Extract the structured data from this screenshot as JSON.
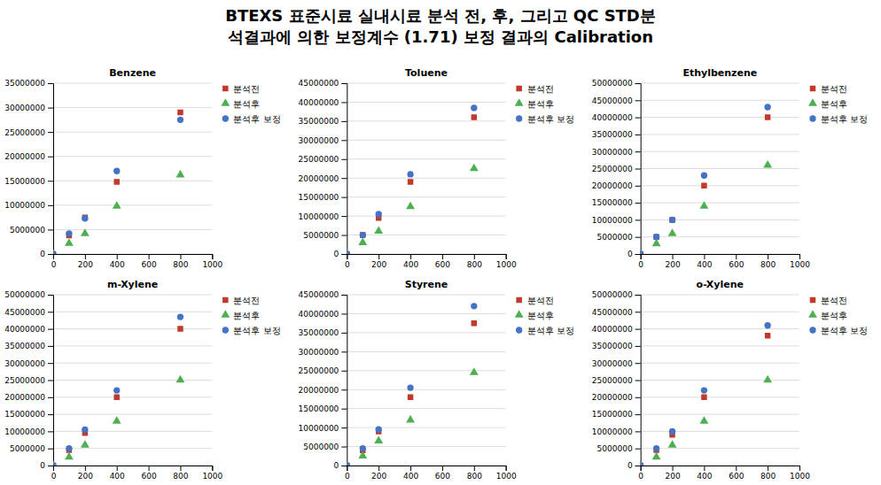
{
  "title": [
    "BTEXS 표준시료 실내시료 분석 전, 후, 그리고 QC STD분",
    "석결과에 의한 보정계수 (1.71) 보정 결과의 Calibration"
  ],
  "chart_data": [
    {
      "type": "scatter",
      "title": "Benzene",
      "grid": true,
      "legend": "right",
      "xlim": [
        0,
        1000
      ],
      "xticks": [
        0,
        200,
        400,
        600,
        800,
        1000
      ],
      "ylim": [
        0,
        35000000
      ],
      "yticks": [
        0,
        5000000,
        10000000,
        15000000,
        20000000,
        25000000,
        30000000,
        35000000
      ],
      "series": [
        {
          "name": "분석전",
          "color": "#C0392B",
          "marker": "square",
          "x": [
            0,
            100,
            200,
            400,
            800
          ],
          "values": [
            0,
            3800000,
            7500000,
            14800000,
            29000000
          ]
        },
        {
          "name": "분석후",
          "color": "#4CAF50",
          "marker": "triangle",
          "x": [
            0,
            100,
            200,
            400,
            800
          ],
          "values": [
            0,
            2200000,
            4200000,
            9800000,
            16200000
          ]
        },
        {
          "name": "분석후 보정",
          "color": "#4472C4",
          "marker": "circle",
          "x": [
            0,
            100,
            200,
            400,
            800
          ],
          "values": [
            0,
            4200000,
            7300000,
            17000000,
            27500000
          ]
        }
      ]
    },
    {
      "type": "scatter",
      "title": "Toluene",
      "grid": true,
      "legend": "right",
      "xlim": [
        0,
        1000
      ],
      "xticks": [
        0,
        200,
        400,
        600,
        800,
        1000
      ],
      "ylim": [
        0,
        45000000
      ],
      "yticks": [
        0,
        5000000,
        10000000,
        15000000,
        20000000,
        25000000,
        30000000,
        35000000,
        40000000,
        45000000
      ],
      "series": [
        {
          "name": "분석전",
          "color": "#C0392B",
          "marker": "square",
          "x": [
            0,
            100,
            200,
            400,
            800
          ],
          "values": [
            0,
            5000000,
            9500000,
            19000000,
            36000000
          ]
        },
        {
          "name": "분석후",
          "color": "#4CAF50",
          "marker": "triangle",
          "x": [
            0,
            100,
            200,
            400,
            800
          ],
          "values": [
            0,
            3000000,
            6000000,
            12500000,
            22500000
          ]
        },
        {
          "name": "분석후 보정",
          "color": "#4472C4",
          "marker": "circle",
          "x": [
            0,
            100,
            200,
            400,
            800
          ],
          "values": [
            0,
            5000000,
            10500000,
            21000000,
            38500000
          ]
        }
      ]
    },
    {
      "type": "scatter",
      "title": "Ethylbenzene",
      "grid": true,
      "legend": "right",
      "xlim": [
        0,
        1000
      ],
      "xticks": [
        0,
        200,
        400,
        600,
        800,
        1000
      ],
      "ylim": [
        0,
        50000000
      ],
      "yticks": [
        0,
        5000000,
        10000000,
        15000000,
        20000000,
        25000000,
        30000000,
        35000000,
        40000000,
        45000000,
        50000000
      ],
      "series": [
        {
          "name": "분석전",
          "color": "#C0392B",
          "marker": "square",
          "x": [
            0,
            100,
            200,
            400,
            800
          ],
          "values": [
            0,
            5000000,
            10000000,
            20000000,
            40000000
          ]
        },
        {
          "name": "분석후",
          "color": "#4CAF50",
          "marker": "triangle",
          "x": [
            0,
            100,
            200,
            400,
            800
          ],
          "values": [
            0,
            3000000,
            6000000,
            14000000,
            26000000
          ]
        },
        {
          "name": "분석후 보정",
          "color": "#4472C4",
          "marker": "circle",
          "x": [
            0,
            100,
            200,
            400,
            800
          ],
          "values": [
            0,
            5000000,
            10000000,
            23000000,
            43000000
          ]
        }
      ]
    },
    {
      "type": "scatter",
      "title": "m-Xylene",
      "grid": true,
      "legend": "right",
      "xlim": [
        0,
        1000
      ],
      "xticks": [
        0,
        200,
        400,
        600,
        800,
        1000
      ],
      "ylim": [
        0,
        50000000
      ],
      "yticks": [
        0,
        5000000,
        10000000,
        15000000,
        20000000,
        25000000,
        30000000,
        35000000,
        40000000,
        45000000,
        50000000
      ],
      "series": [
        {
          "name": "분석전",
          "color": "#C0392B",
          "marker": "square",
          "x": [
            0,
            100,
            200,
            400,
            800
          ],
          "values": [
            0,
            4500000,
            9500000,
            20000000,
            40000000
          ]
        },
        {
          "name": "분석후",
          "color": "#4CAF50",
          "marker": "triangle",
          "x": [
            0,
            100,
            200,
            400,
            800
          ],
          "values": [
            0,
            2500000,
            6000000,
            13000000,
            25000000
          ]
        },
        {
          "name": "분석후 보정",
          "color": "#4472C4",
          "marker": "circle",
          "x": [
            0,
            100,
            200,
            400,
            800
          ],
          "values": [
            0,
            5000000,
            10500000,
            22000000,
            43500000
          ]
        }
      ]
    },
    {
      "type": "scatter",
      "title": "Styrene",
      "grid": true,
      "legend": "right",
      "xlim": [
        0,
        1000
      ],
      "xticks": [
        0,
        200,
        400,
        600,
        800,
        1000
      ],
      "ylim": [
        0,
        45000000
      ],
      "yticks": [
        0,
        5000000,
        10000000,
        15000000,
        20000000,
        25000000,
        30000000,
        35000000,
        40000000,
        45000000
      ],
      "series": [
        {
          "name": "분석전",
          "color": "#C0392B",
          "marker": "square",
          "x": [
            0,
            100,
            200,
            400,
            800
          ],
          "values": [
            0,
            4000000,
            9000000,
            18000000,
            37500000
          ]
        },
        {
          "name": "분석후",
          "color": "#4CAF50",
          "marker": "triangle",
          "x": [
            0,
            100,
            200,
            400,
            800
          ],
          "values": [
            0,
            2500000,
            6500000,
            12000000,
            24500000
          ]
        },
        {
          "name": "분석후 보정",
          "color": "#4472C4",
          "marker": "circle",
          "x": [
            0,
            100,
            200,
            400,
            800
          ],
          "values": [
            0,
            4500000,
            9500000,
            20500000,
            42000000
          ]
        }
      ]
    },
    {
      "type": "scatter",
      "title": "o-Xylene",
      "grid": true,
      "legend": "right",
      "xlim": [
        0,
        1000
      ],
      "xticks": [
        0,
        200,
        400,
        600,
        800,
        1000
      ],
      "ylim": [
        0,
        50000000
      ],
      "yticks": [
        0,
        5000000,
        10000000,
        15000000,
        20000000,
        25000000,
        30000000,
        35000000,
        40000000,
        45000000,
        50000000
      ],
      "series": [
        {
          "name": "분석전",
          "color": "#C0392B",
          "marker": "square",
          "x": [
            0,
            100,
            200,
            400,
            800
          ],
          "values": [
            0,
            4500000,
            9000000,
            20000000,
            38000000
          ]
        },
        {
          "name": "분석후",
          "color": "#4CAF50",
          "marker": "triangle",
          "x": [
            0,
            100,
            200,
            400,
            800
          ],
          "values": [
            0,
            2500000,
            6000000,
            13000000,
            25000000
          ]
        },
        {
          "name": "분석후 보정",
          "color": "#4472C4",
          "marker": "circle",
          "x": [
            0,
            100,
            200,
            400,
            800
          ],
          "values": [
            0,
            5000000,
            10000000,
            22000000,
            41000000
          ]
        }
      ]
    }
  ]
}
